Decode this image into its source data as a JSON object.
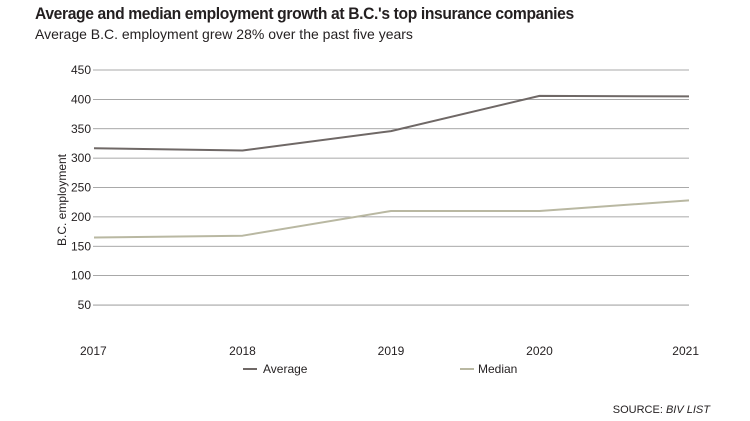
{
  "header": {
    "title": "Average and median employment growth at B.C.'s top insurance companies",
    "subtitle": "Average B.C. employment grew 28% over the past five years"
  },
  "source": {
    "prefix": "SOURCE: ",
    "name": "BIV LIST"
  },
  "colors": {
    "average": "#6f6866",
    "median": "#b9b8a2",
    "grid": "#8c8c8c"
  },
  "chart_data": {
    "type": "line",
    "title": "Average and median employment growth at B.C.'s top insurance companies",
    "subtitle": "Average B.C. employment grew 28% over the past five years",
    "xlabel": "",
    "ylabel": "B.C. employment",
    "x": [
      "2017",
      "2018",
      "2019",
      "2020",
      "2021"
    ],
    "ylim": [
      0,
      450
    ],
    "yticks": [
      50,
      100,
      150,
      200,
      250,
      300,
      350,
      400,
      450
    ],
    "grid": true,
    "legend": "bottom",
    "series": [
      {
        "name": "Average",
        "values": [
          317,
          313,
          346,
          406,
          405
        ]
      },
      {
        "name": "Median",
        "values": [
          165,
          168,
          210,
          210,
          228
        ]
      }
    ]
  }
}
